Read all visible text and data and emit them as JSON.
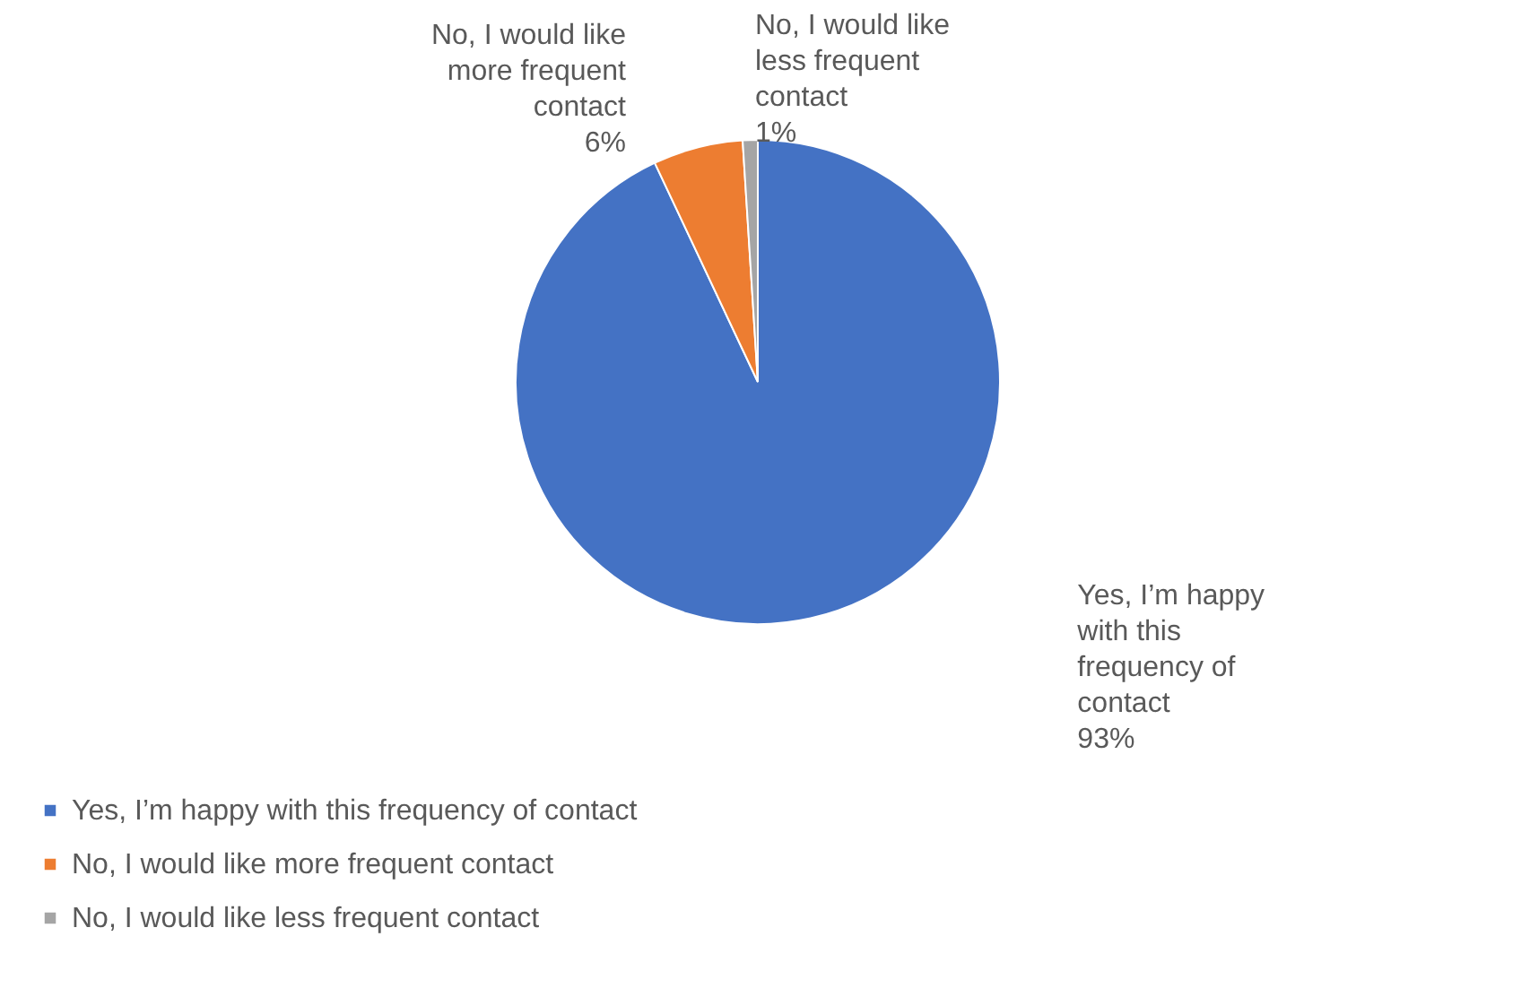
{
  "chart_data": {
    "type": "pie",
    "categories": [
      "Yes, I’m happy with this frequency of contact",
      "No, I would like more frequent contact",
      "No, I would like less frequent contact"
    ],
    "values": [
      93,
      6,
      1
    ],
    "colors": [
      "#4472c4",
      "#ed7d31",
      "#a5a5a5"
    ],
    "value_labels": [
      "93%",
      "6%",
      "1%"
    ],
    "legend": "bottom"
  }
}
